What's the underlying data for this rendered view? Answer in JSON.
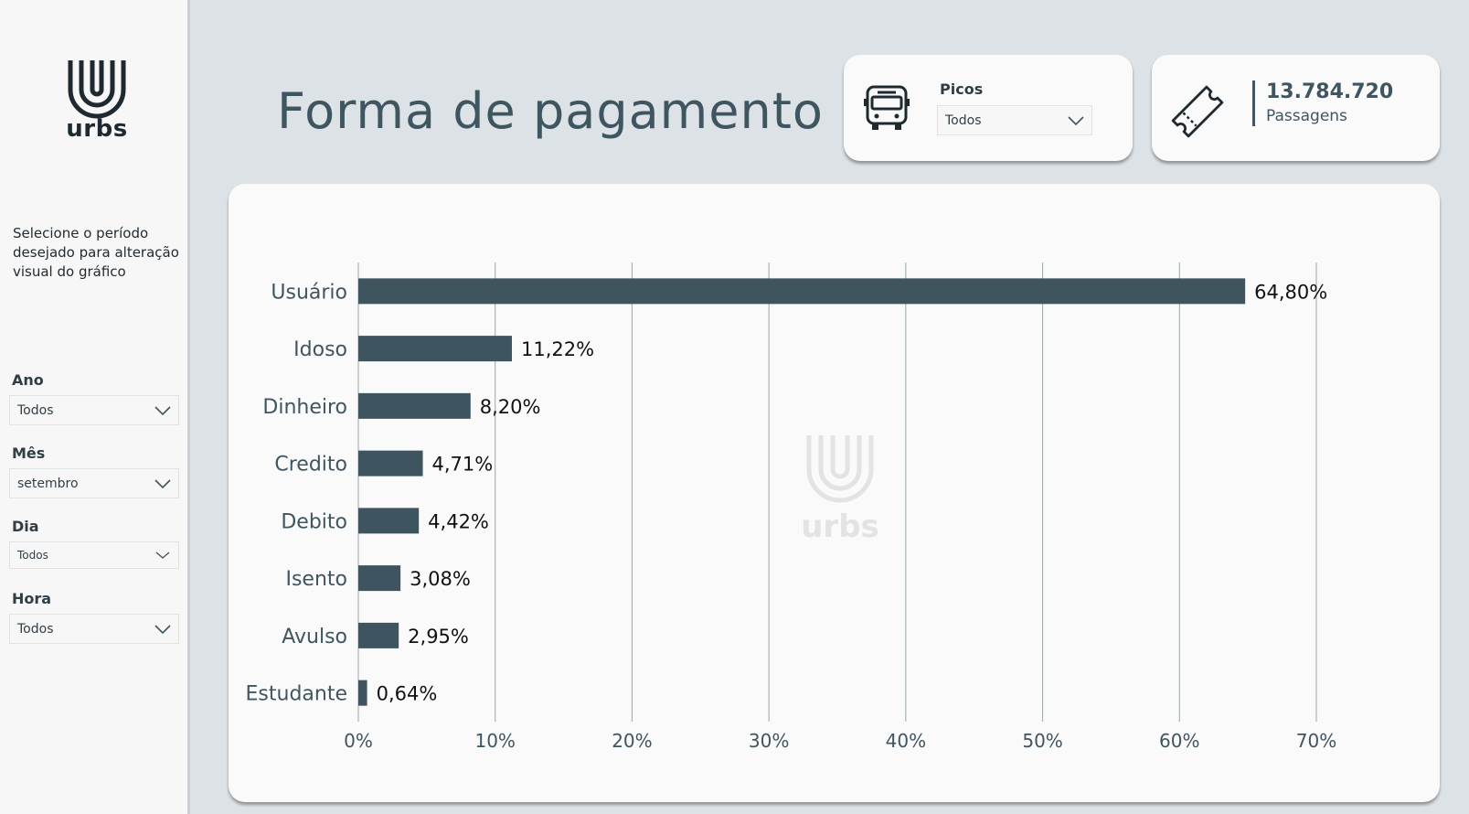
{
  "brand": {
    "logo_text": "urbs",
    "watermark_text": "urbs"
  },
  "sidebar": {
    "help_text": "Selecione o período desejado para alteração visual do gráfico",
    "filters": [
      {
        "label": "Ano",
        "value": "Todos"
      },
      {
        "label": "Mês",
        "value": "setembro"
      },
      {
        "label": "Dia",
        "value": "Todos"
      },
      {
        "label": "Hora",
        "value": "Todos"
      }
    ]
  },
  "header": {
    "title": "Forma de pagamento",
    "picos": {
      "label": "Picos",
      "value": "Todos"
    },
    "passagens": {
      "value": "13.784.720",
      "label": "Passagens"
    }
  },
  "colors": {
    "bar": "#3e5560",
    "grid": "#9aa8a6",
    "accent": "#3f5560"
  },
  "icons": {
    "bus": "bus-icon",
    "ticket": "ticket-icon",
    "chevron": "chevron-down-icon"
  },
  "chart_data": {
    "type": "bar",
    "orientation": "horizontal",
    "categories": [
      "Usuário",
      "Idoso",
      "Dinheiro",
      "Credito",
      "Debito",
      "Isento",
      "Avulso",
      "Estudante"
    ],
    "values": [
      64.8,
      11.22,
      8.2,
      4.71,
      4.42,
      3.08,
      2.95,
      0.64
    ],
    "value_labels": [
      "64,80%",
      "11,22%",
      "8,20%",
      "4,71%",
      "4,42%",
      "3,08%",
      "2,95%",
      "0,64%"
    ],
    "xlim": [
      0,
      70
    ],
    "x_ticks": [
      "0%",
      "10%",
      "20%",
      "30%",
      "40%",
      "50%",
      "60%",
      "70%"
    ],
    "grid": true,
    "title": "",
    "xlabel": "",
    "ylabel": ""
  }
}
